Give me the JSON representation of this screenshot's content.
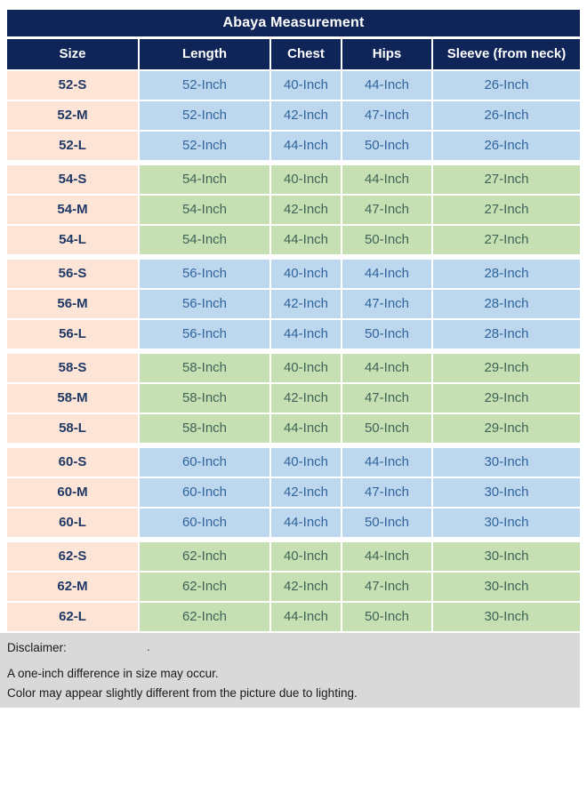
{
  "chart_data": {
    "type": "table",
    "title": "Abaya Measurement",
    "columns": [
      "Size",
      "Length",
      "Chest",
      "Hips",
      "Sleeve (from neck)"
    ],
    "rows": [
      [
        "52-S",
        "52-Inch",
        "40-Inch",
        "44-Inch",
        "26-Inch"
      ],
      [
        "52-M",
        "52-Inch",
        "42-Inch",
        "47-Inch",
        "26-Inch"
      ],
      [
        "52-L",
        "52-Inch",
        "44-Inch",
        "50-Inch",
        "26-Inch"
      ],
      [
        "54-S",
        "54-Inch",
        "40-Inch",
        "44-Inch",
        "27-Inch"
      ],
      [
        "54-M",
        "54-Inch",
        "42-Inch",
        "47-Inch",
        "27-Inch"
      ],
      [
        "54-L",
        "54-Inch",
        "44-Inch",
        "50-Inch",
        "27-Inch"
      ],
      [
        "56-S",
        "56-Inch",
        "40-Inch",
        "44-Inch",
        "28-Inch"
      ],
      [
        "56-M",
        "56-Inch",
        "42-Inch",
        "47-Inch",
        "28-Inch"
      ],
      [
        "56-L",
        "56-Inch",
        "44-Inch",
        "50-Inch",
        "28-Inch"
      ],
      [
        "58-S",
        "58-Inch",
        "40-Inch",
        "44-Inch",
        "29-Inch"
      ],
      [
        "58-M",
        "58-Inch",
        "42-Inch",
        "47-Inch",
        "29-Inch"
      ],
      [
        "58-L",
        "58-Inch",
        "44-Inch",
        "50-Inch",
        "29-Inch"
      ],
      [
        "60-S",
        "60-Inch",
        "40-Inch",
        "44-Inch",
        "30-Inch"
      ],
      [
        "60-M",
        "60-Inch",
        "42-Inch",
        "47-Inch",
        "30-Inch"
      ],
      [
        "60-L",
        "60-Inch",
        "44-Inch",
        "50-Inch",
        "30-Inch"
      ],
      [
        "62-S",
        "62-Inch",
        "40-Inch",
        "44-Inch",
        "30-Inch"
      ],
      [
        "62-M",
        "62-Inch",
        "42-Inch",
        "47-Inch",
        "30-Inch"
      ],
      [
        "62-L",
        "62-Inch",
        "44-Inch",
        "50-Inch",
        "30-Inch"
      ]
    ],
    "rows_per_group": 3,
    "group_tones": [
      "blue",
      "green",
      "blue",
      "green",
      "blue",
      "green"
    ],
    "legend_position": "none",
    "grid": "cell-separators"
  },
  "disclaimer": {
    "heading": "Disclaimer:",
    "lines": [
      "A one-inch difference in size may occur.",
      "Color may appear slightly different from the picture due to lighting."
    ],
    "stray_mark": "."
  },
  "colors": {
    "header_navy": "#0f2557",
    "header_text": "#ffffff",
    "size_column_bg": "#fce4d6",
    "size_column_text": "#1f3864",
    "blue_row_bg": "#bdd7ee",
    "blue_row_text": "#31659b",
    "green_row_bg": "#c6e0b4",
    "green_row_text": "#406457",
    "disclaimer_bg": "#d9d9d9",
    "disclaimer_text": "#1a1a1a"
  }
}
